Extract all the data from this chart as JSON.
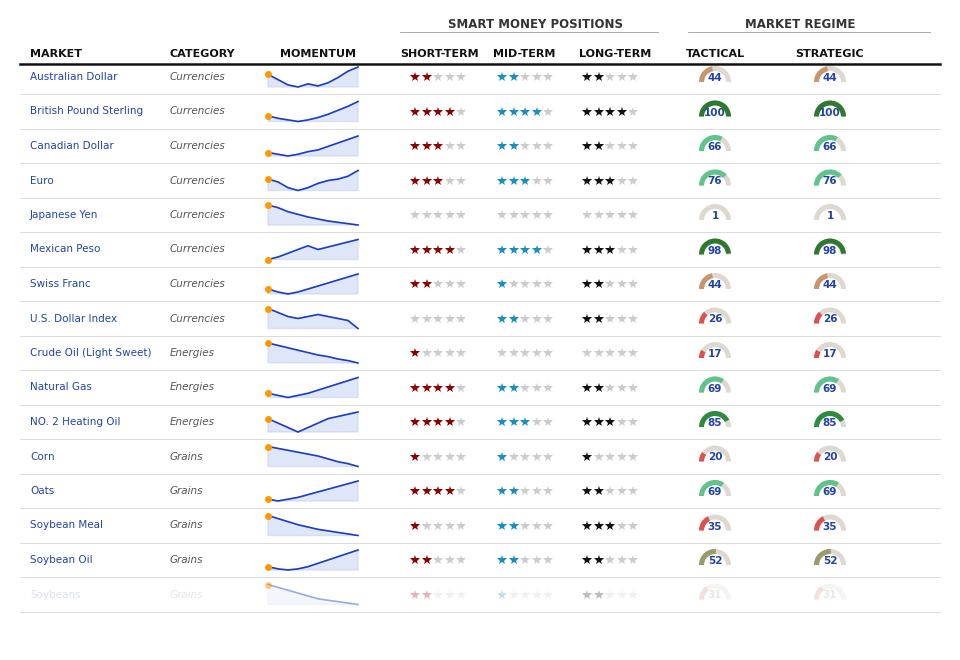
{
  "title_left": "SMART MONEY POSITIONS",
  "title_right": "MARKET REGIME",
  "headers": [
    "MARKET",
    "CATEGORY",
    "MOMENTUM",
    "SHORT-TERM",
    "MID-TERM",
    "LONG-TERM",
    "TACTICAL",
    "STRATEGIC"
  ],
  "rows": [
    {
      "market": "Australian Dollar",
      "category": "Currencies",
      "short_term": 2,
      "mid_term": 2,
      "long_term": 2,
      "tactical": 44,
      "strategic": 44,
      "faded": false
    },
    {
      "market": "British Pound Sterling",
      "category": "Currencies",
      "short_term": 4,
      "mid_term": 4,
      "long_term": 4,
      "tactical": 100,
      "strategic": 100,
      "faded": false
    },
    {
      "market": "Canadian Dollar",
      "category": "Currencies",
      "short_term": 3,
      "mid_term": 2,
      "long_term": 2,
      "tactical": 66,
      "strategic": 66,
      "faded": false
    },
    {
      "market": "Euro",
      "category": "Currencies",
      "short_term": 3,
      "mid_term": 3,
      "long_term": 3,
      "tactical": 76,
      "strategic": 76,
      "faded": false
    },
    {
      "market": "Japanese Yen",
      "category": "Currencies",
      "short_term": 0,
      "mid_term": 0,
      "long_term": 0,
      "tactical": 1,
      "strategic": 1,
      "faded": false
    },
    {
      "market": "Mexican Peso",
      "category": "Currencies",
      "short_term": 4,
      "mid_term": 4,
      "long_term": 3,
      "tactical": 98,
      "strategic": 98,
      "faded": false
    },
    {
      "market": "Swiss Franc",
      "category": "Currencies",
      "short_term": 2,
      "mid_term": 1,
      "long_term": 2,
      "tactical": 44,
      "strategic": 44,
      "faded": false
    },
    {
      "market": "U.S. Dollar Index",
      "category": "Currencies",
      "short_term": 0,
      "mid_term": 2,
      "long_term": 2,
      "tactical": 26,
      "strategic": 26,
      "faded": false
    },
    {
      "market": "Crude Oil (Light Sweet)",
      "category": "Energies",
      "short_term": 1,
      "mid_term": 0,
      "long_term": 0,
      "tactical": 17,
      "strategic": 17,
      "faded": false
    },
    {
      "market": "Natural Gas",
      "category": "Energies",
      "short_term": 4,
      "mid_term": 2,
      "long_term": 2,
      "tactical": 69,
      "strategic": 69,
      "faded": false
    },
    {
      "market": "NO. 2 Heating Oil",
      "category": "Energies",
      "short_term": 4,
      "mid_term": 3,
      "long_term": 3,
      "tactical": 85,
      "strategic": 85,
      "faded": false
    },
    {
      "market": "Corn",
      "category": "Grains",
      "short_term": 1,
      "mid_term": 1,
      "long_term": 1,
      "tactical": 20,
      "strategic": 20,
      "faded": false
    },
    {
      "market": "Oats",
      "category": "Grains",
      "short_term": 4,
      "mid_term": 2,
      "long_term": 2,
      "tactical": 69,
      "strategic": 69,
      "faded": false
    },
    {
      "market": "Soybean Meal",
      "category": "Grains",
      "short_term": 1,
      "mid_term": 2,
      "long_term": 3,
      "tactical": 35,
      "strategic": 35,
      "faded": false
    },
    {
      "market": "Soybean Oil",
      "category": "Grains",
      "short_term": 2,
      "mid_term": 2,
      "long_term": 2,
      "tactical": 52,
      "strategic": 52,
      "faded": false
    },
    {
      "market": "Soybeans",
      "category": "Grains",
      "short_term": 2,
      "mid_term": 1,
      "long_term": 2,
      "tactical": 31,
      "strategic": 31,
      "faded": true
    }
  ],
  "gauge_colors": {
    "1": "#e8e0d5",
    "17": "#e05050",
    "20": "#e05050",
    "26": "#e05050",
    "31": "#e8b0a8",
    "35": "#e05050",
    "44": "#c9956e",
    "52": "#9b9b6a",
    "66": "#5ec48a",
    "69": "#5ec48a",
    "76": "#5ec48a",
    "85": "#2d8a3e",
    "98": "#2d7a2d",
    "100": "#2d7a2d"
  },
  "momentum_data": [
    [
      0.55,
      0.5,
      0.45,
      0.43,
      0.46,
      0.44,
      0.47,
      0.52,
      0.58,
      0.62
    ],
    [
      0.45,
      0.42,
      0.4,
      0.38,
      0.4,
      0.43,
      0.47,
      0.52,
      0.57,
      0.63
    ],
    [
      0.42,
      0.4,
      0.38,
      0.4,
      0.43,
      0.45,
      0.49,
      0.53,
      0.57,
      0.61
    ],
    [
      0.5,
      0.48,
      0.44,
      0.42,
      0.44,
      0.47,
      0.49,
      0.5,
      0.52,
      0.56
    ],
    [
      0.62,
      0.58,
      0.52,
      0.48,
      0.44,
      0.41,
      0.38,
      0.36,
      0.34,
      0.32
    ],
    [
      0.42,
      0.44,
      0.47,
      0.5,
      0.53,
      0.5,
      0.52,
      0.54,
      0.56,
      0.58
    ],
    [
      0.45,
      0.42,
      0.4,
      0.42,
      0.45,
      0.48,
      0.51,
      0.54,
      0.57,
      0.6
    ],
    [
      0.54,
      0.52,
      0.5,
      0.49,
      0.5,
      0.51,
      0.5,
      0.49,
      0.48,
      0.44
    ],
    [
      0.58,
      0.55,
      0.52,
      0.49,
      0.46,
      0.43,
      0.41,
      0.38,
      0.36,
      0.33
    ],
    [
      0.44,
      0.42,
      0.4,
      0.42,
      0.44,
      0.47,
      0.5,
      0.53,
      0.56,
      0.59
    ],
    [
      0.52,
      0.5,
      0.48,
      0.46,
      0.48,
      0.5,
      0.52,
      0.53,
      0.54,
      0.55
    ],
    [
      0.58,
      0.56,
      0.54,
      0.52,
      0.5,
      0.48,
      0.45,
      0.42,
      0.4,
      0.37
    ],
    [
      0.42,
      0.4,
      0.42,
      0.44,
      0.47,
      0.5,
      0.53,
      0.56,
      0.59,
      0.62
    ],
    [
      0.62,
      0.58,
      0.54,
      0.5,
      0.47,
      0.44,
      0.42,
      0.4,
      0.38,
      0.36
    ],
    [
      0.4,
      0.38,
      0.37,
      0.38,
      0.4,
      0.43,
      0.46,
      0.49,
      0.52,
      0.55
    ],
    [
      0.52,
      0.5,
      0.48,
      0.46,
      0.44,
      0.42,
      0.41,
      0.4,
      0.39,
      0.38
    ]
  ],
  "bg_color": "#ffffff",
  "market_color": "#2244aa",
  "category_color": "#555555",
  "header_color": "#111111",
  "star_red": "#8b0000",
  "star_blue": "#1a8fbf",
  "star_black": "#111111",
  "star_inactive": "#cccccc",
  "spark_line": "#1a3cc8",
  "spark_fill": "#b8c8ee",
  "spark_dot": "#ff9900",
  "num_color": "#2244aa",
  "gauge_bg": "#ddd8d0"
}
